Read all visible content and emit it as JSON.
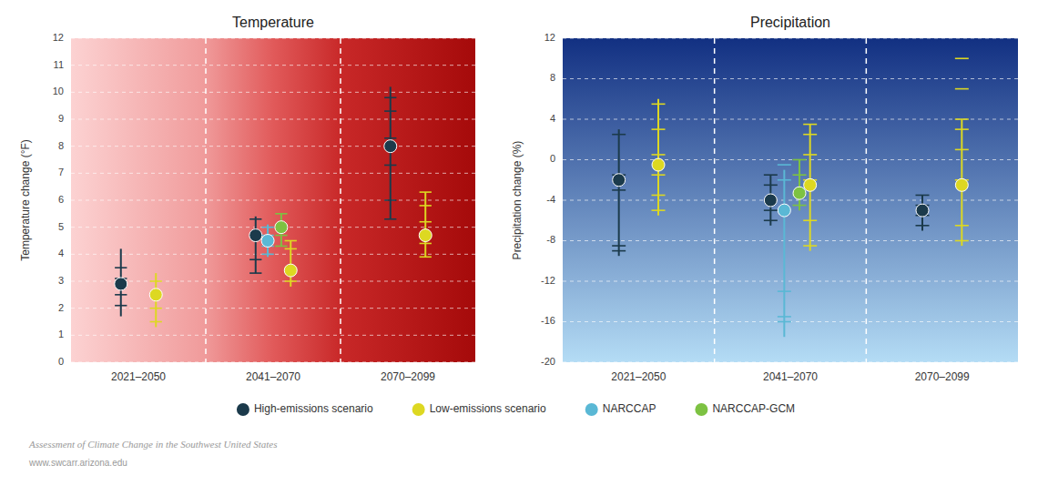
{
  "chart_data": [
    {
      "type": "dot_range",
      "title": "Temperature",
      "y_label": "Temperature change (°F)",
      "categories": [
        "2021–2050",
        "2041–2070",
        "2070–2099"
      ],
      "ylim": [
        0,
        12
      ],
      "yticks": [
        0,
        1,
        2,
        3,
        4,
        5,
        6,
        7,
        8,
        9,
        10,
        11,
        12
      ],
      "grid": true,
      "legend": "bottom",
      "annotations": [
        "Assessment of Climate Change in the Southwest United States",
        "www.swcarr.arizona.edu"
      ],
      "series": [
        {
          "name": "High-emissions scenario",
          "color": "#1b3a4b",
          "values": [
            2.9,
            4.7,
            8.0
          ],
          "error_low": [
            1.7,
            3.3,
            5.3
          ],
          "error_high": [
            4.2,
            5.4,
            10.2
          ],
          "model_values": [
            [
              2.1,
              2.5,
              3.1,
              3.5
            ],
            [
              3.3,
              3.8,
              4.7,
              5.3
            ],
            [
              5.3,
              6.0,
              7.3,
              8.3,
              9.3,
              9.8
            ]
          ]
        },
        {
          "name": "Low-emissions scenario",
          "color": "#ddd822",
          "values": [
            2.5,
            3.4,
            4.7
          ],
          "error_low": [
            1.3,
            2.8,
            3.9
          ],
          "error_high": [
            3.3,
            4.5,
            6.3
          ],
          "model_values": [
            [
              1.5,
              2.0,
              2.6,
              3.0
            ],
            [
              3.0,
              3.5,
              4.2,
              4.5
            ],
            [
              3.9,
              4.4,
              5.2,
              5.8,
              6.3
            ]
          ]
        },
        {
          "name": "NARCCAP",
          "color": "#5ab8d5",
          "values": [
            null,
            4.5,
            null
          ],
          "error_low": [
            null,
            3.9,
            null
          ],
          "error_high": [
            null,
            5.1,
            null
          ],
          "model_values": [
            [],
            [
              4.0,
              4.3,
              4.7,
              5.0
            ],
            []
          ]
        },
        {
          "name": "NARCCAP-GCM",
          "color": "#7dc242",
          "values": [
            null,
            5.0,
            null
          ],
          "error_low": [
            null,
            4.3,
            null
          ],
          "error_high": [
            null,
            5.5,
            null
          ],
          "model_values": [
            [],
            [
              4.3,
              4.7,
              5.1,
              5.5
            ],
            []
          ]
        }
      ]
    },
    {
      "type": "dot_range",
      "title": "Precipitation",
      "y_label": "Precipitation change (%)",
      "categories": [
        "2021–2050",
        "2041–2070",
        "2070–2099"
      ],
      "ylim": [
        -20,
        12
      ],
      "yticks": [
        -20,
        -16,
        -12,
        -8,
        -4,
        0,
        4,
        8,
        12
      ],
      "grid": true,
      "series": [
        {
          "name": "High-emissions scenario",
          "color": "#1b3a4b",
          "values": [
            -2.0,
            -4.0,
            -5.0
          ],
          "error_low": [
            -9.5,
            -6.5,
            -7.0
          ],
          "error_high": [
            3.0,
            -1.5,
            -3.5
          ],
          "model_values": [
            [
              -9.0,
              -8.5,
              -3.0,
              -2.0,
              -1.5,
              2.5
            ],
            [
              -6.0,
              -5.0,
              -2.5,
              -1.5
            ],
            [
              -6.5,
              -5.5,
              -4.5,
              -3.5
            ]
          ]
        },
        {
          "name": "Low-emissions scenario",
          "color": "#ddd822",
          "values": [
            -0.5,
            -2.5,
            -2.5
          ],
          "error_low": [
            -5.5,
            -9.0,
            -8.5
          ],
          "error_high": [
            6.0,
            3.5,
            4.0
          ],
          "model_values": [
            [
              -5.0,
              -3.5,
              -1.5,
              0.5,
              3.0,
              5.5
            ],
            [
              -8.5,
              -6.0,
              -2.0,
              0.5,
              2.5,
              3.5
            ],
            [
              -8.0,
              -6.5,
              -2.0,
              1.0,
              3.0,
              4.0,
              7.0,
              10.0
            ]
          ]
        },
        {
          "name": "NARCCAP",
          "color": "#5ab8d5",
          "values": [
            null,
            -5.0,
            null
          ],
          "error_low": [
            null,
            -17.5,
            null
          ],
          "error_high": [
            null,
            -1.0,
            null
          ],
          "model_values": [
            [],
            [
              -16.0,
              -15.5,
              -13.0,
              -2.0,
              -0.5
            ],
            []
          ]
        },
        {
          "name": "NARCCAP-GCM",
          "color": "#7dc242",
          "values": [
            null,
            -3.3,
            null
          ],
          "error_low": [
            null,
            -5.0,
            null
          ],
          "error_high": [
            null,
            0.0,
            null
          ],
          "model_values": [
            [],
            [
              -4.5,
              -3.5,
              -1.5,
              0.0
            ],
            []
          ]
        }
      ]
    }
  ]
}
